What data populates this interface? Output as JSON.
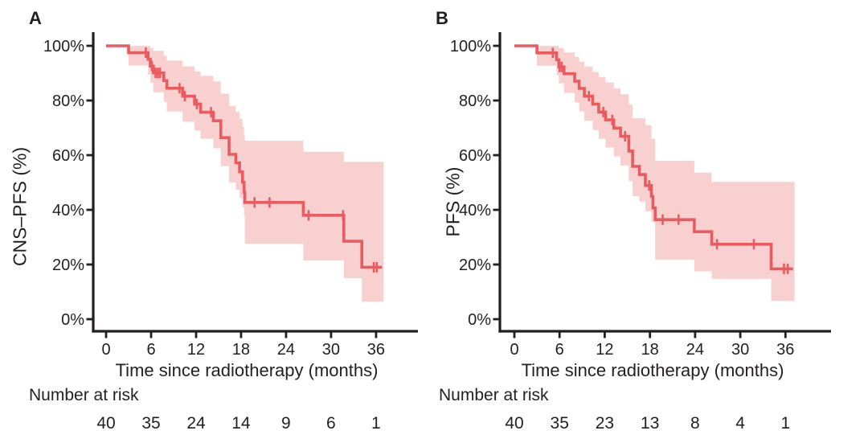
{
  "figure": {
    "background": "#ffffff",
    "panels": [
      {
        "letter": "A",
        "y_axis_label": "CNS–PFS (%)",
        "x_axis_label": "Time since radiotherapy (months)",
        "number_at_risk_label": "Number at risk"
      },
      {
        "letter": "B",
        "y_axis_label": "PFS (%)",
        "x_axis_label": "Time since radiotherapy (months)",
        "number_at_risk_label": "Number at risk"
      }
    ]
  },
  "chart_data": [
    {
      "type": "line",
      "subtype": "kaplan_meier_step",
      "panel": "A",
      "title": "A",
      "ylabel": "CNS–PFS (%)",
      "xlabel": "Time since radiotherapy (months)",
      "xlim": [
        0,
        41.5
      ],
      "ylim": [
        0,
        100
      ],
      "grid": false,
      "legend": null,
      "xticks": [
        0,
        6,
        12,
        18,
        24,
        30,
        36
      ],
      "yticks": [
        [
          0,
          "0%"
        ],
        [
          20,
          "20%"
        ],
        [
          40,
          "40%"
        ],
        [
          60,
          "60%"
        ],
        [
          80,
          "80%"
        ],
        [
          100,
          "100%"
        ]
      ],
      "colors": {
        "line": "#e85c5f",
        "ci": "#f8d0d0",
        "axis": "#231f20"
      },
      "survival_steps": [
        [
          0,
          100
        ],
        [
          3,
          97.5
        ],
        [
          5.6,
          95.1
        ],
        [
          5.9,
          92.6
        ],
        [
          6.3,
          90.1
        ],
        [
          7.7,
          87.3
        ],
        [
          8.1,
          84.5
        ],
        [
          10.2,
          81.6
        ],
        [
          11.8,
          78.7
        ],
        [
          12.6,
          75.7
        ],
        [
          14.3,
          72.6
        ],
        [
          15.3,
          66.4
        ],
        [
          16.4,
          60.3
        ],
        [
          17.3,
          57.2
        ],
        [
          17.8,
          53.9
        ],
        [
          18.2,
          50.1
        ],
        [
          18.4,
          46.4
        ],
        [
          18.5,
          42.7
        ],
        [
          26.3,
          38.0
        ],
        [
          31.7,
          28.5
        ],
        [
          34.1,
          19.0
        ],
        [
          36.8,
          19.0
        ]
      ],
      "censor_marks": [
        [
          5.3,
          97.5
        ],
        [
          6.1,
          92.6
        ],
        [
          6.6,
          90.1
        ],
        [
          6.9,
          90.1
        ],
        [
          7.2,
          90.1
        ],
        [
          9.8,
          84.5
        ],
        [
          10.5,
          81.6
        ],
        [
          12.1,
          78.7
        ],
        [
          14.0,
          75.7
        ],
        [
          19.8,
          42.7
        ],
        [
          21.8,
          42.7
        ],
        [
          27.0,
          38.0
        ],
        [
          31.6,
          38.0
        ],
        [
          35.7,
          19.0
        ],
        [
          36.1,
          19.0
        ]
      ],
      "ci_band": [
        [
          3,
          100,
          92.8
        ],
        [
          5.6,
          100,
          89.5
        ],
        [
          5.9,
          99.2,
          86.5
        ],
        [
          6.3,
          98.2,
          83.0
        ],
        [
          7.7,
          96.3,
          79.5
        ],
        [
          8.1,
          94.6,
          76.0
        ],
        [
          10.2,
          92.5,
          72.3
        ],
        [
          11.8,
          90.6,
          69.0
        ],
        [
          12.6,
          89.0,
          66.0
        ],
        [
          14.3,
          87.0,
          62.5
        ],
        [
          15.3,
          82.5,
          56.0
        ],
        [
          16.4,
          78.0,
          50.0
        ],
        [
          17.3,
          75.8,
          47.3
        ],
        [
          17.8,
          73.3,
          44.3
        ],
        [
          18.2,
          70.4,
          40.9
        ],
        [
          18.4,
          67.4,
          37.8
        ],
        [
          18.5,
          65.3,
          27.6
        ],
        [
          26.3,
          61.2,
          21.5
        ],
        [
          31.7,
          57.6,
          15.0
        ],
        [
          34.1,
          57.6,
          6.4
        ],
        [
          37.0,
          57.6,
          6.4
        ]
      ],
      "number_at_risk": {
        "label": "Number at risk",
        "times": [
          0,
          6,
          12,
          18,
          24,
          30,
          36
        ],
        "values": [
          40,
          35,
          24,
          14,
          9,
          6,
          1
        ]
      }
    },
    {
      "type": "line",
      "subtype": "kaplan_meier_step",
      "panel": "B",
      "title": "B",
      "ylabel": "PFS (%)",
      "xlabel": "Time since radiotherapy (months)",
      "xlim": [
        0,
        41.5
      ],
      "ylim": [
        0,
        100
      ],
      "grid": false,
      "legend": null,
      "xticks": [
        0,
        6,
        12,
        18,
        24,
        30,
        36
      ],
      "yticks": [
        [
          0,
          "0%"
        ],
        [
          20,
          "20%"
        ],
        [
          40,
          "40%"
        ],
        [
          60,
          "60%"
        ],
        [
          80,
          "80%"
        ],
        [
          100,
          "100%"
        ]
      ],
      "colors": {
        "line": "#e85c5f",
        "ci": "#f8d0d0",
        "axis": "#231f20"
      },
      "survival_steps": [
        [
          0,
          100
        ],
        [
          3.0,
          97.4
        ],
        [
          5.6,
          94.9
        ],
        [
          5.9,
          92.3
        ],
        [
          6.6,
          89.8
        ],
        [
          8.0,
          87.1
        ],
        [
          8.6,
          84.4
        ],
        [
          9.3,
          81.6
        ],
        [
          10.4,
          78.7
        ],
        [
          11.2,
          75.8
        ],
        [
          12.1,
          72.9
        ],
        [
          13.2,
          69.9
        ],
        [
          14.1,
          66.9
        ],
        [
          15.2,
          61.5
        ],
        [
          15.7,
          55.9
        ],
        [
          16.6,
          52.9
        ],
        [
          17.4,
          48.9
        ],
        [
          18.2,
          44.9
        ],
        [
          18.4,
          40.7
        ],
        [
          18.7,
          36.4
        ],
        [
          23.9,
          32.0
        ],
        [
          26.2,
          27.4
        ],
        [
          34.1,
          18.4
        ],
        [
          37.0,
          18.4
        ]
      ],
      "censor_marks": [
        [
          5.1,
          97.4
        ],
        [
          6.0,
          92.3
        ],
        [
          6.3,
          92.3
        ],
        [
          9.9,
          81.6
        ],
        [
          11.8,
          75.8
        ],
        [
          13.0,
          72.9
        ],
        [
          14.7,
          66.9
        ],
        [
          17.9,
          48.9
        ],
        [
          19.7,
          36.4
        ],
        [
          21.8,
          36.4
        ],
        [
          26.9,
          27.4
        ],
        [
          31.8,
          27.4
        ],
        [
          35.8,
          18.4
        ],
        [
          36.3,
          18.4
        ]
      ],
      "ci_band": [
        [
          3.0,
          100,
          92.7
        ],
        [
          5.6,
          100,
          89.3
        ],
        [
          5.9,
          99.2,
          86.3
        ],
        [
          6.6,
          97.6,
          82.8
        ],
        [
          8.0,
          95.9,
          79.3
        ],
        [
          8.6,
          94.2,
          76.0
        ],
        [
          9.3,
          92.4,
          72.6
        ],
        [
          10.4,
          90.4,
          69.2
        ],
        [
          11.2,
          88.5,
          66.0
        ],
        [
          12.1,
          86.6,
          62.8
        ],
        [
          13.2,
          84.5,
          59.5
        ],
        [
          14.1,
          82.3,
          56.2
        ],
        [
          15.2,
          78.5,
          50.5
        ],
        [
          15.7,
          73.5,
          45.0
        ],
        [
          16.6,
          73.5,
          43.0
        ],
        [
          17.4,
          71.0,
          39.5
        ],
        [
          18.2,
          66.0,
          35.5
        ],
        [
          18.7,
          57.9,
          21.8
        ],
        [
          23.9,
          53.6,
          17.5
        ],
        [
          26.2,
          50.2,
          14.8
        ],
        [
          34.1,
          50.2,
          6.7
        ],
        [
          37.2,
          50.2,
          6.7
        ]
      ],
      "number_at_risk": {
        "label": "Number at risk",
        "times": [
          0,
          6,
          12,
          18,
          24,
          30,
          36
        ],
        "values": [
          40,
          35,
          23,
          13,
          8,
          4,
          1
        ]
      }
    }
  ]
}
